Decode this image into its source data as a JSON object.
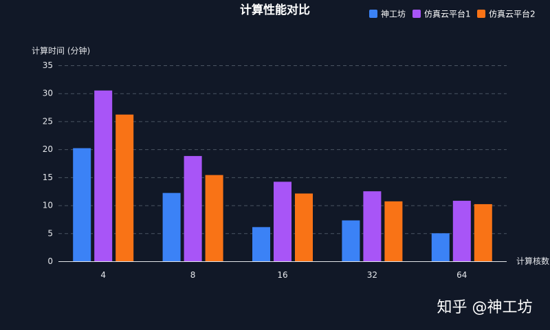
{
  "chart_data": {
    "type": "bar",
    "title": "计算性能对比",
    "xlabel": "计算核数",
    "ylabel": "计算时间 (分钟)",
    "categories": [
      "4",
      "8",
      "16",
      "32",
      "64"
    ],
    "ylim": [
      0,
      35
    ],
    "yticks": [
      0,
      5,
      10,
      15,
      20,
      25,
      30,
      35
    ],
    "grid": true,
    "legend_position": "top-right",
    "series": [
      {
        "name": "神工坊",
        "color": "#3b82f6",
        "values": [
          20.2,
          12.2,
          6.1,
          7.3,
          5.0
        ]
      },
      {
        "name": "仿真云平台1",
        "color": "#a855f7",
        "values": [
          30.5,
          18.8,
          14.2,
          12.5,
          10.8
        ]
      },
      {
        "name": "仿真云平台2",
        "color": "#f97316",
        "values": [
          26.2,
          15.4,
          12.1,
          10.7,
          10.2
        ]
      }
    ]
  },
  "watermark": "知乎 @神工坊"
}
